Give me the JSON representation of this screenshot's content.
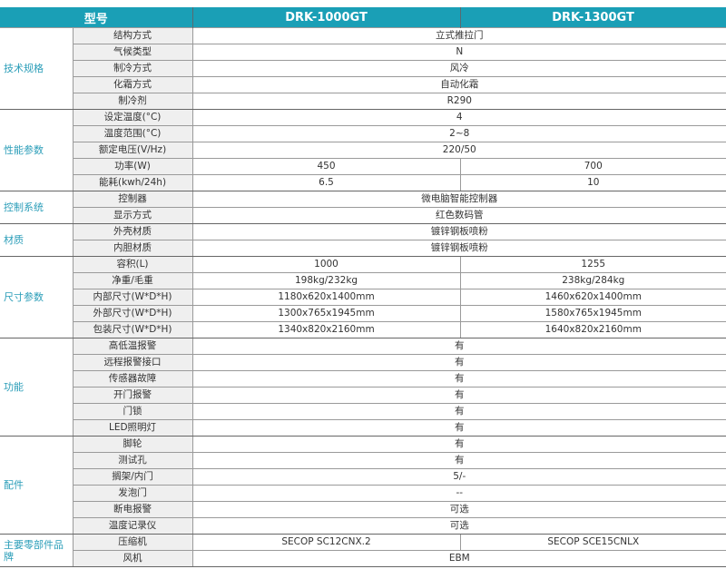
{
  "header": {
    "model_label": "型号",
    "models": [
      "DRK-1000GT",
      "DRK-1300GT"
    ]
  },
  "colors": {
    "header_bg": "#1a9fb6",
    "category_text": "#2a9db8",
    "param_bg": "#efefef"
  },
  "groups": [
    {
      "category": "技术规格",
      "rows": [
        {
          "param": "结构方式",
          "value": "立式推拉门"
        },
        {
          "param": "气候类型",
          "value": "N"
        },
        {
          "param": "制冷方式",
          "value": "风冷"
        },
        {
          "param": "化霜方式",
          "value": "自动化霜"
        },
        {
          "param": "制冷剂",
          "value": "R290"
        }
      ]
    },
    {
      "category": "性能参数",
      "rows": [
        {
          "param": "设定温度(°C)",
          "value": "4"
        },
        {
          "param": "温度范围(°C)",
          "value": "2~8"
        },
        {
          "param": "额定电压(V/Hz)",
          "value": "220/50"
        },
        {
          "param": "功率(W)",
          "v1": "450",
          "v2": "700"
        },
        {
          "param": "能耗(kwh/24h)",
          "v1": "6.5",
          "v2": "10"
        }
      ]
    },
    {
      "category": "控制系统",
      "rows": [
        {
          "param": "控制器",
          "value": "微电脑智能控制器"
        },
        {
          "param": "显示方式",
          "value": "红色数码管"
        }
      ]
    },
    {
      "category": "材质",
      "rows": [
        {
          "param": "外壳材质",
          "value": "镀锌钢板喷粉"
        },
        {
          "param": "内胆材质",
          "value": "镀锌钢板喷粉"
        }
      ]
    },
    {
      "category": "尺寸参数",
      "rows": [
        {
          "param": "容积(L)",
          "v1": "1000",
          "v2": "1255"
        },
        {
          "param": "净重/毛重",
          "v1": "198kg/232kg",
          "v2": "238kg/284kg"
        },
        {
          "param": "内部尺寸(W*D*H)",
          "v1": "1180x620x1400mm",
          "v2": "1460x620x1400mm"
        },
        {
          "param": "外部尺寸(W*D*H)",
          "v1": "1300x765x1945mm",
          "v2": "1580x765x1945mm"
        },
        {
          "param": "包装尺寸(W*D*H)",
          "v1": "1340x820x2160mm",
          "v2": "1640x820x2160mm"
        }
      ]
    },
    {
      "category": "功能",
      "rows": [
        {
          "param": "高低温报警",
          "value": "有"
        },
        {
          "param": "远程报警接口",
          "value": "有"
        },
        {
          "param": "传感器故障",
          "value": "有"
        },
        {
          "param": "开门报警",
          "value": "有"
        },
        {
          "param": "门锁",
          "value": "有"
        },
        {
          "param": "LED照明灯",
          "value": "有"
        }
      ]
    },
    {
      "category": "配件",
      "rows": [
        {
          "param": "脚轮",
          "value": "有"
        },
        {
          "param": "测试孔",
          "value": "有"
        },
        {
          "param": "搁架/内门",
          "value": "5/-"
        },
        {
          "param": "发泡门",
          "value": "--"
        },
        {
          "param": "断电报警",
          "value": "可选"
        },
        {
          "param": "温度记录仪",
          "value": "可选"
        }
      ]
    },
    {
      "category": "主要零部件品牌",
      "rows": [
        {
          "param": "压缩机",
          "v1": "SECOP SC12CNX.2",
          "v2": "SECOP SCE15CNLX"
        },
        {
          "param": "风机",
          "value": "EBM"
        }
      ]
    }
  ]
}
